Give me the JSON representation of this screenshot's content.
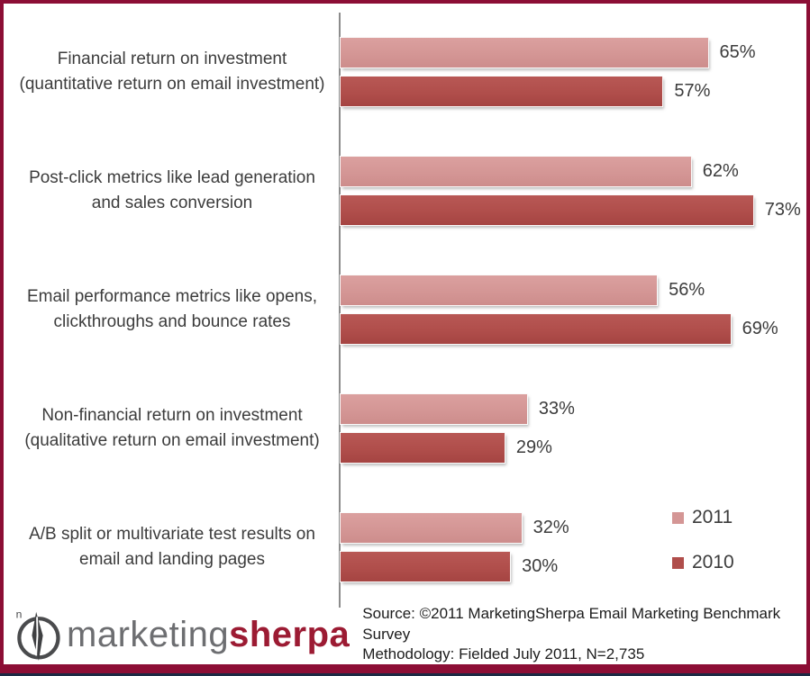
{
  "chart_data": {
    "type": "bar",
    "orientation": "horizontal",
    "title": "",
    "xlabel": "",
    "ylabel": "",
    "categories": [
      "Financial return on investment (quantitative return on email investment)",
      "Post-click metrics like lead generation and sales conversion",
      "Email performance metrics like opens, clickthroughs and bounce rates",
      "Non-financial return on investment (qualitative return on email investment)",
      "A/B split or multivariate test results on email and landing pages"
    ],
    "series": [
      {
        "name": "2011",
        "color": "#D49695",
        "values": [
          65,
          62,
          56,
          33,
          32
        ]
      },
      {
        "name": "2010",
        "color": "#B04E4B",
        "values": [
          57,
          73,
          69,
          29,
          30
        ]
      }
    ],
    "value_suffix": "%",
    "xlim": [
      0,
      80
    ],
    "grid": false,
    "legend_position": "right"
  },
  "footer": {
    "source_line1": "Source: ©2011 MarketingSherpa Email Marketing Benchmark Survey",
    "source_line2": "Methodology: Fielded July 2011, N=2,735",
    "logo": {
      "prefix": "marketing",
      "suffix": "sherpa",
      "compass_mark": "n"
    }
  },
  "colors": {
    "frame_border": "#8C0E35",
    "bottom_strip": "#1B2A44",
    "axis_line": "#8C8C8C",
    "series_2011": "#D49695",
    "series_2010": "#B04E4B",
    "text": "#3C3C3C",
    "logo_gray": "#6D6E71",
    "logo_red": "#9C1B33"
  }
}
